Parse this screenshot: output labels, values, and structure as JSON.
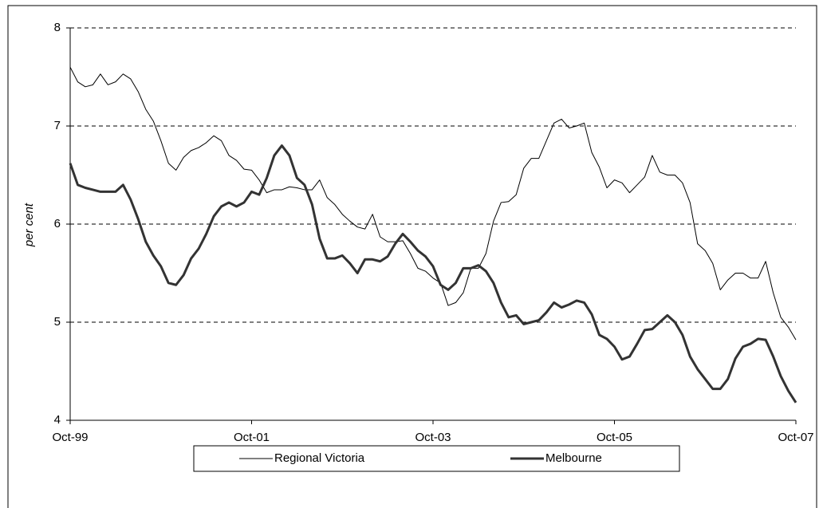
{
  "chart_data": {
    "type": "line",
    "y_label": "per cent",
    "categories": [
      "Oct-99",
      null,
      null,
      null,
      null,
      null,
      null,
      null,
      null,
      null,
      null,
      null,
      null,
      null,
      null,
      null,
      null,
      null,
      null,
      null,
      null,
      null,
      null,
      null,
      "Oct-01",
      null,
      null,
      null,
      null,
      null,
      null,
      null,
      null,
      null,
      null,
      null,
      null,
      null,
      null,
      null,
      null,
      null,
      null,
      null,
      null,
      null,
      null,
      null,
      "Oct-03",
      null,
      null,
      null,
      null,
      null,
      null,
      null,
      null,
      null,
      null,
      null,
      null,
      null,
      null,
      null,
      null,
      null,
      null,
      null,
      null,
      null,
      null,
      null,
      "Oct-05",
      null,
      null,
      null,
      null,
      null,
      null,
      null,
      null,
      null,
      null,
      null,
      null,
      null,
      null,
      null,
      null,
      null,
      null,
      null,
      null,
      null,
      null,
      null,
      "Oct-07"
    ],
    "series": [
      {
        "name": "Regional Victoria",
        "color": "#000000",
        "width": 1,
        "values": [
          7.6,
          7.45,
          7.4,
          7.42,
          7.53,
          7.42,
          7.45,
          7.53,
          7.48,
          7.35,
          7.17,
          7.05,
          6.85,
          6.62,
          6.55,
          6.68,
          6.75,
          6.78,
          6.83,
          6.9,
          6.85,
          6.7,
          6.65,
          6.56,
          6.55,
          6.45,
          6.32,
          6.35,
          6.35,
          6.38,
          6.37,
          6.35,
          6.35,
          6.45,
          6.27,
          6.2,
          6.1,
          6.03,
          5.97,
          5.95,
          6.1,
          5.87,
          5.82,
          5.82,
          5.83,
          5.7,
          5.55,
          5.52,
          5.45,
          5.4,
          5.17,
          5.2,
          5.3,
          5.55,
          5.55,
          5.7,
          6.03,
          6.22,
          6.23,
          6.3,
          6.57,
          6.67,
          6.67,
          6.85,
          7.03,
          7.07,
          6.98,
          7.0,
          7.03,
          6.73,
          6.58,
          6.37,
          6.45,
          6.42,
          6.32,
          6.4,
          6.48,
          6.7,
          6.53,
          6.5,
          6.5,
          6.42,
          6.22,
          5.8,
          5.73,
          5.6,
          5.33,
          5.43,
          5.5,
          5.5,
          5.45,
          5.45,
          5.62,
          5.3,
          5.05,
          4.95,
          4.82
        ]
      },
      {
        "name": "Melbourne",
        "color": "#333333",
        "width": 3,
        "values": [
          6.62,
          6.4,
          6.37,
          6.35,
          6.33,
          6.33,
          6.33,
          6.4,
          6.25,
          6.05,
          5.82,
          5.68,
          5.57,
          5.4,
          5.38,
          5.48,
          5.65,
          5.75,
          5.9,
          6.08,
          6.18,
          6.22,
          6.18,
          6.22,
          6.33,
          6.3,
          6.47,
          6.7,
          6.8,
          6.7,
          6.47,
          6.4,
          6.2,
          5.85,
          5.65,
          5.65,
          5.68,
          5.6,
          5.5,
          5.64,
          5.64,
          5.62,
          5.67,
          5.8,
          5.9,
          5.82,
          5.73,
          5.67,
          5.57,
          5.38,
          5.33,
          5.4,
          5.55,
          5.55,
          5.58,
          5.52,
          5.4,
          5.2,
          5.05,
          5.07,
          4.98,
          5.0,
          5.02,
          5.1,
          5.2,
          5.15,
          5.18,
          5.22,
          5.2,
          5.08,
          4.87,
          4.83,
          4.75,
          4.62,
          4.65,
          4.78,
          4.92,
          4.93,
          5.0,
          5.07,
          5.0,
          4.87,
          4.65,
          4.52,
          4.42,
          4.32,
          4.32,
          4.42,
          4.63,
          4.75,
          4.78,
          4.83,
          4.82,
          4.65,
          4.45,
          4.3,
          4.18
        ]
      }
    ],
    "ylim": [
      4,
      8
    ],
    "yticks": [
      4,
      5,
      6,
      7,
      8
    ],
    "grid": true,
    "legend": "bottom"
  }
}
